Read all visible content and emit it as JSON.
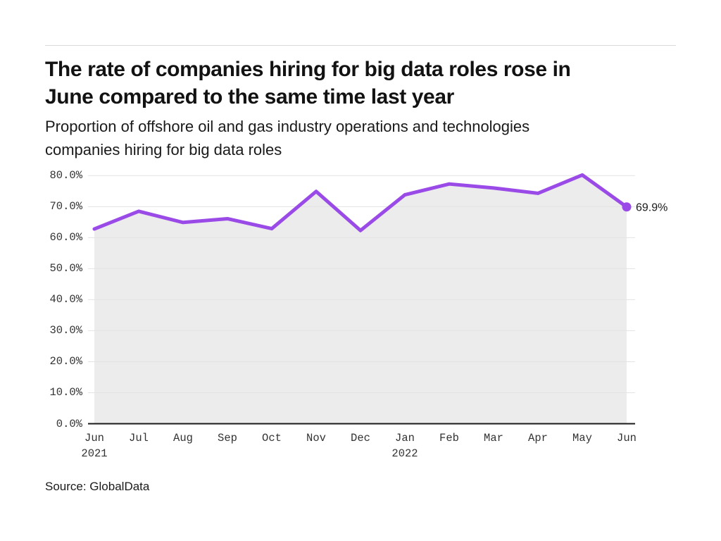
{
  "header": {
    "title": "The rate of companies hiring for big data roles rose in\nJune compared to the same time last year",
    "subtitle": "Proportion of offshore oil and gas industry operations and technologies\ncompanies hiring for big data roles"
  },
  "footer": {
    "source": "Source: GlobalData"
  },
  "chart_data": {
    "type": "line",
    "title": "The rate of companies hiring for big data roles rose in June compared to the same time last year",
    "subtitle": "Proportion of offshore oil and gas industry operations and technologies companies hiring for big data roles",
    "categories": [
      {
        "label": "Jun",
        "sublabel": "2021"
      },
      {
        "label": "Jul",
        "sublabel": ""
      },
      {
        "label": "Aug",
        "sublabel": ""
      },
      {
        "label": "Sep",
        "sublabel": ""
      },
      {
        "label": "Oct",
        "sublabel": ""
      },
      {
        "label": "Nov",
        "sublabel": ""
      },
      {
        "label": "Dec",
        "sublabel": ""
      },
      {
        "label": "Jan",
        "sublabel": "2022"
      },
      {
        "label": "Feb",
        "sublabel": ""
      },
      {
        "label": "Mar",
        "sublabel": ""
      },
      {
        "label": "Apr",
        "sublabel": ""
      },
      {
        "label": "May",
        "sublabel": ""
      },
      {
        "label": "Jun",
        "sublabel": ""
      }
    ],
    "values": [
      62.8,
      68.5,
      64.9,
      66.1,
      62.9,
      74.9,
      62.3,
      73.8,
      77.3,
      76.0,
      74.3,
      80.2,
      69.9
    ],
    "end_label": "69.9%",
    "yticks": [
      {
        "value": 80,
        "label": "80.0%"
      },
      {
        "value": 70,
        "label": "70.0%"
      },
      {
        "value": 60,
        "label": "60.0%"
      },
      {
        "value": 50,
        "label": "50.0%"
      },
      {
        "value": 40,
        "label": "40.0%"
      },
      {
        "value": 30,
        "label": "30.0%"
      },
      {
        "value": 20,
        "label": "20.0%"
      },
      {
        "value": 10,
        "label": "10.0%"
      },
      {
        "value": 0,
        "label": "0.0%"
      }
    ],
    "ylim": [
      0,
      80
    ],
    "grid": true,
    "legend": "none",
    "colors": {
      "line": "#9a4ae6",
      "area": "#ececec",
      "grid": "#e3e3e3",
      "axis": "#1a1a1a",
      "label": "#1a1a1a"
    }
  }
}
